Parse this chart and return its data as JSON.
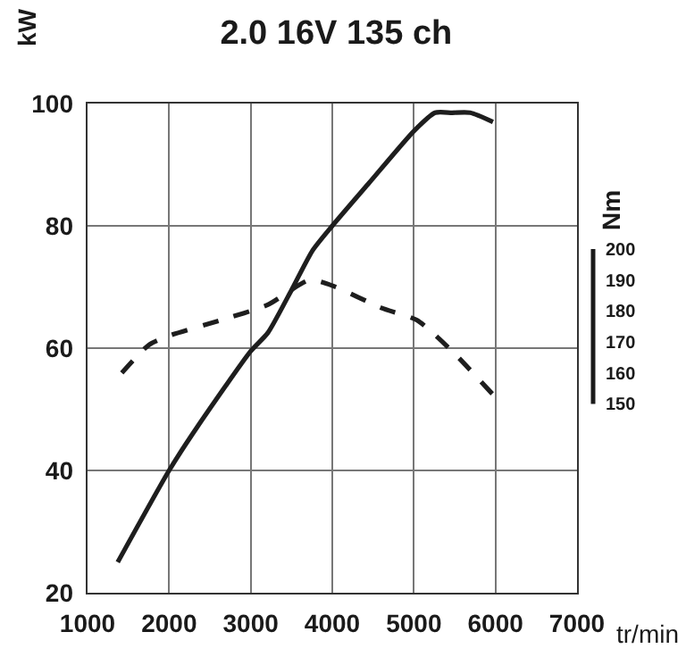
{
  "chart_data": {
    "type": "line",
    "title": "2.0 16V 135 ch",
    "xlabel": "tr/min",
    "ylabel": "kW",
    "y2label": "Nm",
    "xlim": [
      1000,
      7000
    ],
    "xticks": [
      1000,
      2000,
      3000,
      4000,
      5000,
      6000,
      7000
    ],
    "ylim": [
      20,
      100
    ],
    "yticks": [
      20,
      40,
      60,
      80,
      100
    ],
    "y2lim": [
      89,
      247
    ],
    "y2ticks": [
      150,
      160,
      170,
      180,
      190,
      200
    ],
    "grid": true,
    "marker": "none",
    "series": [
      {
        "color": "#1e1e1e",
        "line_style": "solid",
        "x": [
          1370,
          2000,
          2340,
          3000,
          3210,
          3500,
          3760,
          4000,
          4450,
          5000,
          5260,
          5470,
          5690,
          5970
        ],
        "values": [
          25,
          40,
          47,
          59.5,
          62.5,
          69.5,
          76,
          80,
          87,
          95.5,
          98.5,
          98.5,
          98.5,
          97
        ]
      },
      {
        "color": "#1e1e1e",
        "line_style": "dashed",
        "axis": "y2",
        "x": [
          1420,
          1750,
          2000,
          2630,
          3210,
          3720,
          4020,
          4600,
          5040,
          5470,
          5970
        ],
        "values": [
          160,
          169,
          172,
          177,
          182,
          190,
          188,
          181,
          177,
          167,
          153
        ]
      }
    ]
  }
}
